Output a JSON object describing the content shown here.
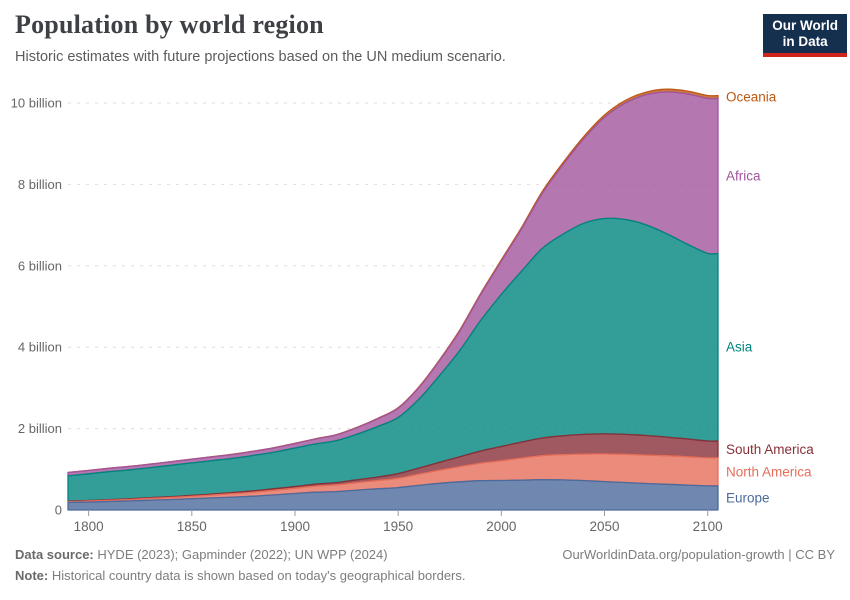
{
  "header": {
    "title": "Population by world region",
    "subtitle": "Historic estimates with future projections based on the UN medium scenario.",
    "logo_line1": "Our World",
    "logo_line2": "in Data"
  },
  "colors": {
    "logo_bg": "#15304e",
    "logo_accent": "#cf2419",
    "gridline": "#dddddd",
    "axis_text": "#666666",
    "tick_mark": "#999999"
  },
  "footer": {
    "source_label": "Data source:",
    "source_text": "HYDE (2023); Gapminder (2022); UN WPP (2024)",
    "link": "OurWorldinData.org/population-growth | CC BY",
    "note_label": "Note:",
    "note_text": "Historical country data is shown based on today's geographical borders."
  },
  "chart_data": {
    "type": "area",
    "stacked": true,
    "title": "Population by world region",
    "xlabel": "",
    "ylabel": "",
    "legend_position": "right",
    "grid": "dashed-horizontal",
    "unit": "billion people",
    "xlim": [
      1790,
      2100
    ],
    "ylim": [
      0,
      10.5
    ],
    "xticks": [
      1800,
      1850,
      1900,
      1950,
      2000,
      2050,
      2100
    ],
    "yticks": [
      0,
      2,
      4,
      6,
      8,
      10
    ],
    "ytick_labels": [
      "0",
      "2 billion",
      "4 billion",
      "6 billion",
      "8 billion",
      "10 billion"
    ],
    "x": [
      1790,
      1800,
      1810,
      1820,
      1830,
      1840,
      1850,
      1860,
      1870,
      1880,
      1890,
      1900,
      1910,
      1920,
      1930,
      1940,
      1950,
      1960,
      1970,
      1980,
      1990,
      2000,
      2010,
      2020,
      2030,
      2040,
      2050,
      2060,
      2070,
      2080,
      2090,
      2100
    ],
    "series": [
      {
        "name": "Europe",
        "color": "#4C6A9C",
        "values": [
          0.187,
          0.195,
          0.208,
          0.224,
          0.242,
          0.259,
          0.277,
          0.297,
          0.317,
          0.34,
          0.372,
          0.406,
          0.437,
          0.453,
          0.489,
          0.52,
          0.55,
          0.605,
          0.657,
          0.694,
          0.721,
          0.726,
          0.735,
          0.745,
          0.739,
          0.722,
          0.699,
          0.675,
          0.652,
          0.632,
          0.612,
          0.593
        ]
      },
      {
        "name": "North America",
        "color": "#E56E5A",
        "values": [
          0.016,
          0.025,
          0.03,
          0.035,
          0.042,
          0.05,
          0.059,
          0.072,
          0.085,
          0.1,
          0.115,
          0.13,
          0.15,
          0.165,
          0.185,
          0.205,
          0.231,
          0.277,
          0.32,
          0.375,
          0.432,
          0.486,
          0.542,
          0.594,
          0.623,
          0.655,
          0.679,
          0.693,
          0.7,
          0.701,
          0.698,
          0.69
        ]
      },
      {
        "name": "South America",
        "color": "#883039",
        "values": [
          0.013,
          0.014,
          0.015,
          0.017,
          0.018,
          0.02,
          0.022,
          0.025,
          0.028,
          0.032,
          0.036,
          0.041,
          0.048,
          0.056,
          0.068,
          0.084,
          0.114,
          0.148,
          0.192,
          0.241,
          0.296,
          0.349,
          0.393,
          0.431,
          0.46,
          0.48,
          0.491,
          0.49,
          0.479,
          0.459,
          0.436,
          0.412
        ]
      },
      {
        "name": "Asia",
        "color": "#00847E",
        "values": [
          0.625,
          0.656,
          0.69,
          0.712,
          0.74,
          0.77,
          0.8,
          0.82,
          0.84,
          0.87,
          0.9,
          0.947,
          0.99,
          1.03,
          1.12,
          1.24,
          1.379,
          1.69,
          2.13,
          2.62,
          3.21,
          3.736,
          4.21,
          4.664,
          4.959,
          5.189,
          5.293,
          5.28,
          5.18,
          5.0,
          4.79,
          4.61
        ]
      },
      {
        "name": "Africa",
        "color": "#A2559C",
        "values": [
          0.08,
          0.081,
          0.082,
          0.083,
          0.085,
          0.087,
          0.09,
          0.093,
          0.097,
          0.1,
          0.105,
          0.11,
          0.12,
          0.14,
          0.16,
          0.19,
          0.228,
          0.285,
          0.366,
          0.481,
          0.635,
          0.818,
          1.044,
          1.36,
          1.71,
          2.08,
          2.485,
          2.86,
          3.19,
          3.48,
          3.69,
          3.81
        ]
      },
      {
        "name": "Oceania",
        "color": "#BE5915",
        "values": [
          0.002,
          0.002,
          0.002,
          0.002,
          0.002,
          0.002,
          0.002,
          0.003,
          0.004,
          0.004,
          0.005,
          0.006,
          0.007,
          0.009,
          0.01,
          0.011,
          0.013,
          0.016,
          0.02,
          0.023,
          0.027,
          0.031,
          0.037,
          0.043,
          0.049,
          0.054,
          0.058,
          0.062,
          0.065,
          0.067,
          0.069,
          0.069
        ]
      }
    ]
  }
}
